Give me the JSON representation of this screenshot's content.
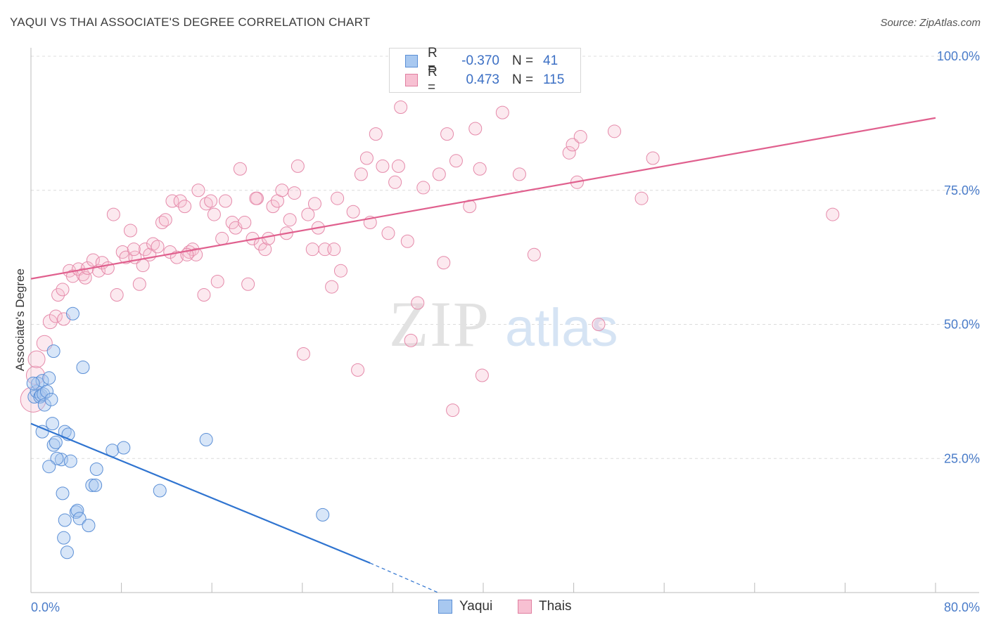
{
  "title": "YAQUI VS THAI ASSOCIATE'S DEGREE CORRELATION CHART",
  "source": "Source: ZipAtlas.com",
  "watermark": {
    "zip": "ZIP",
    "atlas": "atlas"
  },
  "legend": {
    "rows": [
      {
        "r_label": "R =",
        "r_value": "-0.370",
        "n_label": "N =",
        "n_value": "41",
        "color": "#a8c8f0",
        "border": "#5b8fd6"
      },
      {
        "r_label": "R =",
        "r_value": "0.473",
        "n_label": "N =",
        "n_value": "115",
        "color": "#f7c0d2",
        "border": "#e07fa0"
      }
    ]
  },
  "bottom_legend": [
    {
      "label": "Yaqui",
      "color": "#a8c8f0",
      "border": "#5b8fd6"
    },
    {
      "label": "Thais",
      "color": "#f7c0d2",
      "border": "#e07fa0"
    }
  ],
  "chart_data": {
    "type": "scatter",
    "title": "YAQUI VS THAI ASSOCIATE'S DEGREE CORRELATION CHART",
    "xlabel": "",
    "ylabel": "Associate's Degree",
    "xlim": [
      0,
      80
    ],
    "ylim": [
      0,
      100
    ],
    "x_ticks": [
      {
        "value": 0,
        "label": "0.0%"
      },
      {
        "value": 80,
        "label": "80.0%"
      }
    ],
    "y_ticks": [
      {
        "value": 25,
        "label": "25.0%"
      },
      {
        "value": 50,
        "label": "50.0%"
      },
      {
        "value": 75,
        "label": "75.0%"
      },
      {
        "value": 100,
        "label": "100.0%"
      }
    ],
    "grid": true,
    "series": [
      {
        "name": "Yaqui",
        "color": "#7aaae6",
        "trend": {
          "x0": 0,
          "y0": 31.5,
          "x1": 30,
          "y1": 5.5,
          "dash_to_x": 36,
          "dash_to_y": 0,
          "color": "#2f74d0"
        },
        "points": [
          [
            0.3,
            36.5
          ],
          [
            0.5,
            37.5
          ],
          [
            0.6,
            39
          ],
          [
            0.8,
            36.5
          ],
          [
            0.9,
            36.8
          ],
          [
            1.0,
            39.5
          ],
          [
            1.1,
            37
          ],
          [
            1.2,
            35
          ],
          [
            1.4,
            37.5
          ],
          [
            1.6,
            40
          ],
          [
            1.8,
            36
          ],
          [
            1.9,
            31.5
          ],
          [
            1.0,
            30
          ],
          [
            2.0,
            27.5
          ],
          [
            2.2,
            28
          ],
          [
            3.0,
            30
          ],
          [
            3.3,
            29.5
          ],
          [
            2.7,
            24.8
          ],
          [
            2.3,
            25
          ],
          [
            1.6,
            23.5
          ],
          [
            3.5,
            24.5
          ],
          [
            5.8,
            23
          ],
          [
            2.0,
            45
          ],
          [
            3.7,
            52
          ],
          [
            4.6,
            42
          ],
          [
            7.2,
            26.5
          ],
          [
            8.2,
            27
          ],
          [
            5.4,
            20
          ],
          [
            5.7,
            20
          ],
          [
            2.8,
            18.5
          ],
          [
            11.4,
            19
          ],
          [
            15.5,
            28.5
          ],
          [
            4.0,
            15
          ],
          [
            4.1,
            15.3
          ],
          [
            3.0,
            13.5
          ],
          [
            4.3,
            13.8
          ],
          [
            5.1,
            12.5
          ],
          [
            2.9,
            10.2
          ],
          [
            3.2,
            7.5
          ],
          [
            25.8,
            14.5
          ],
          [
            0.2,
            39
          ]
        ]
      },
      {
        "name": "Thais",
        "color": "#f2a6bf",
        "trend": {
          "x0": 0,
          "y0": 58.5,
          "x1": 80,
          "y1": 88.5,
          "color": "#e0608e"
        },
        "points": [
          [
            0.2,
            36
          ],
          [
            0.4,
            40.5
          ],
          [
            0.5,
            43.5
          ],
          [
            1.2,
            46.5
          ],
          [
            1.7,
            50.5
          ],
          [
            2.2,
            51.5
          ],
          [
            2.9,
            51
          ],
          [
            2.4,
            55.5
          ],
          [
            2.8,
            56.5
          ],
          [
            3.4,
            60
          ],
          [
            3.7,
            59
          ],
          [
            4.2,
            60.3
          ],
          [
            4.6,
            59.3
          ],
          [
            4.8,
            58.7
          ],
          [
            5.0,
            60.5
          ],
          [
            5.5,
            62
          ],
          [
            6.0,
            60
          ],
          [
            6.3,
            61.5
          ],
          [
            6.8,
            60.5
          ],
          [
            7.3,
            70.5
          ],
          [
            7.6,
            55.5
          ],
          [
            8.1,
            63.5
          ],
          [
            8.4,
            62.5
          ],
          [
            8.8,
            67.5
          ],
          [
            9.2,
            62.5
          ],
          [
            9.6,
            57.5
          ],
          [
            9.9,
            61
          ],
          [
            10.1,
            64
          ],
          [
            10.5,
            63
          ],
          [
            10.8,
            65
          ],
          [
            11.2,
            64.5
          ],
          [
            11.6,
            69
          ],
          [
            11.9,
            69.5
          ],
          [
            12.3,
            63.5
          ],
          [
            12.5,
            73
          ],
          [
            12.9,
            62.5
          ],
          [
            13.2,
            73
          ],
          [
            13.6,
            72
          ],
          [
            14.0,
            63.5
          ],
          [
            14.3,
            64
          ],
          [
            14.6,
            63
          ],
          [
            14.8,
            75
          ],
          [
            15.3,
            55.5
          ],
          [
            15.5,
            72.5
          ],
          [
            15.9,
            73
          ],
          [
            16.2,
            70.5
          ],
          [
            16.5,
            58
          ],
          [
            16.9,
            66
          ],
          [
            17.2,
            73
          ],
          [
            17.8,
            69
          ],
          [
            18.1,
            68
          ],
          [
            18.5,
            79
          ],
          [
            18.9,
            69
          ],
          [
            19.2,
            57.5
          ],
          [
            19.6,
            66
          ],
          [
            20.0,
            73.5
          ],
          [
            20.3,
            65
          ],
          [
            20.7,
            64
          ],
          [
            21.0,
            66
          ],
          [
            21.4,
            72
          ],
          [
            21.8,
            73
          ],
          [
            22.2,
            75
          ],
          [
            22.6,
            67
          ],
          [
            22.9,
            69.5
          ],
          [
            23.3,
            74.5
          ],
          [
            23.6,
            79.5
          ],
          [
            24.1,
            44.5
          ],
          [
            24.5,
            70.5
          ],
          [
            24.9,
            64
          ],
          [
            25.1,
            72.5
          ],
          [
            25.4,
            68
          ],
          [
            26.0,
            64
          ],
          [
            26.6,
            57
          ],
          [
            27.1,
            73.5
          ],
          [
            27.4,
            60
          ],
          [
            28.5,
            71
          ],
          [
            28.9,
            41.5
          ],
          [
            29.2,
            78
          ],
          [
            29.7,
            81
          ],
          [
            30.0,
            69
          ],
          [
            30.5,
            85.5
          ],
          [
            31.1,
            79.5
          ],
          [
            31.6,
            67
          ],
          [
            32.2,
            76.5
          ],
          [
            32.5,
            79.5
          ],
          [
            32.7,
            90.5
          ],
          [
            33.3,
            65.5
          ],
          [
            33.6,
            47
          ],
          [
            34.2,
            54
          ],
          [
            34.7,
            75.5
          ],
          [
            36.1,
            78
          ],
          [
            36.5,
            61.5
          ],
          [
            36.8,
            85.5
          ],
          [
            37.3,
            34
          ],
          [
            37.6,
            80.5
          ],
          [
            38.8,
            72
          ],
          [
            39.3,
            86.5
          ],
          [
            39.7,
            79
          ],
          [
            39.9,
            40.5
          ],
          [
            41.7,
            89.5
          ],
          [
            43.2,
            78
          ],
          [
            44.5,
            63
          ],
          [
            47.6,
            82
          ],
          [
            47.9,
            83.5
          ],
          [
            48.3,
            76.5
          ],
          [
            48.6,
            85
          ],
          [
            50.2,
            50
          ],
          [
            51.6,
            86
          ],
          [
            54.0,
            73.5
          ],
          [
            55.0,
            81
          ],
          [
            70.9,
            70.5
          ],
          [
            13.8,
            63
          ],
          [
            9.1,
            64
          ],
          [
            19.9,
            73.5
          ],
          [
            26.8,
            64
          ]
        ]
      }
    ]
  }
}
